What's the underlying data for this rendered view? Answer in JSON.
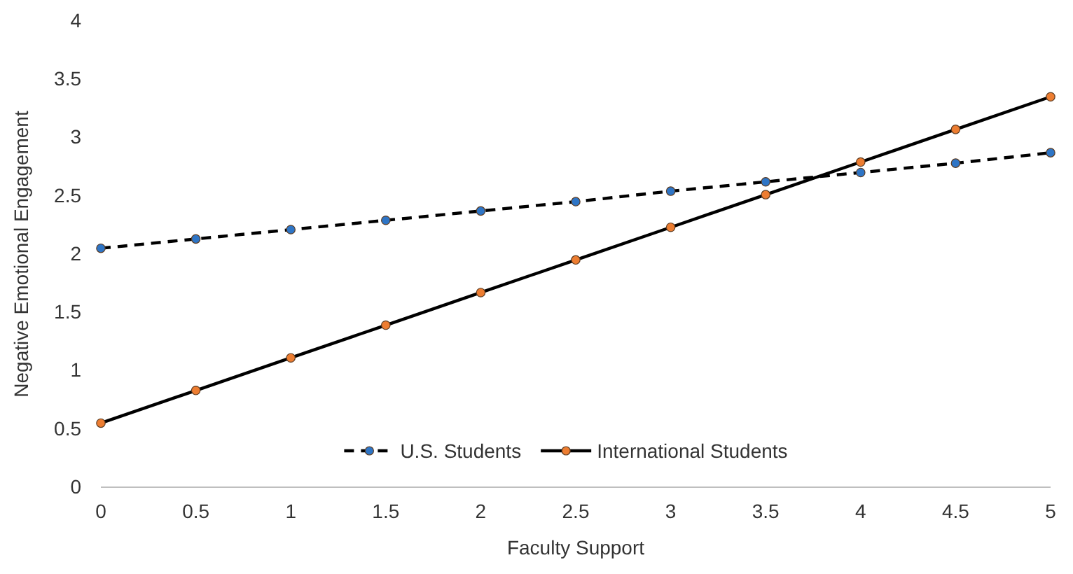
{
  "chart_data": {
    "type": "line",
    "xlabel": "Faculty Support",
    "ylabel": "Negative Emotional Engagement",
    "x": [
      0,
      0.5,
      1,
      1.5,
      2,
      2.5,
      3,
      3.5,
      4,
      4.5,
      5
    ],
    "series": [
      {
        "name": "U.S. Students",
        "color": "#2e75c6",
        "line_style": "dashed",
        "values": [
          2.05,
          2.13,
          2.21,
          2.29,
          2.37,
          2.45,
          2.54,
          2.62,
          2.7,
          2.78,
          2.87
        ]
      },
      {
        "name": "International Students",
        "color": "#ed7d31",
        "line_style": "solid",
        "values": [
          0.55,
          0.83,
          1.11,
          1.39,
          1.67,
          1.95,
          2.23,
          2.51,
          2.79,
          3.07,
          3.35
        ]
      }
    ],
    "xlim": [
      0,
      5
    ],
    "xticks": [
      0,
      0.5,
      1,
      1.5,
      2,
      2.5,
      3,
      3.5,
      4,
      4.5,
      5
    ],
    "ylim": [
      0,
      4
    ],
    "yticks": [
      0,
      0.5,
      1,
      1.5,
      2,
      2.5,
      3,
      3.5,
      4
    ],
    "grid": false,
    "legend": "bottom",
    "marker": "circle"
  }
}
